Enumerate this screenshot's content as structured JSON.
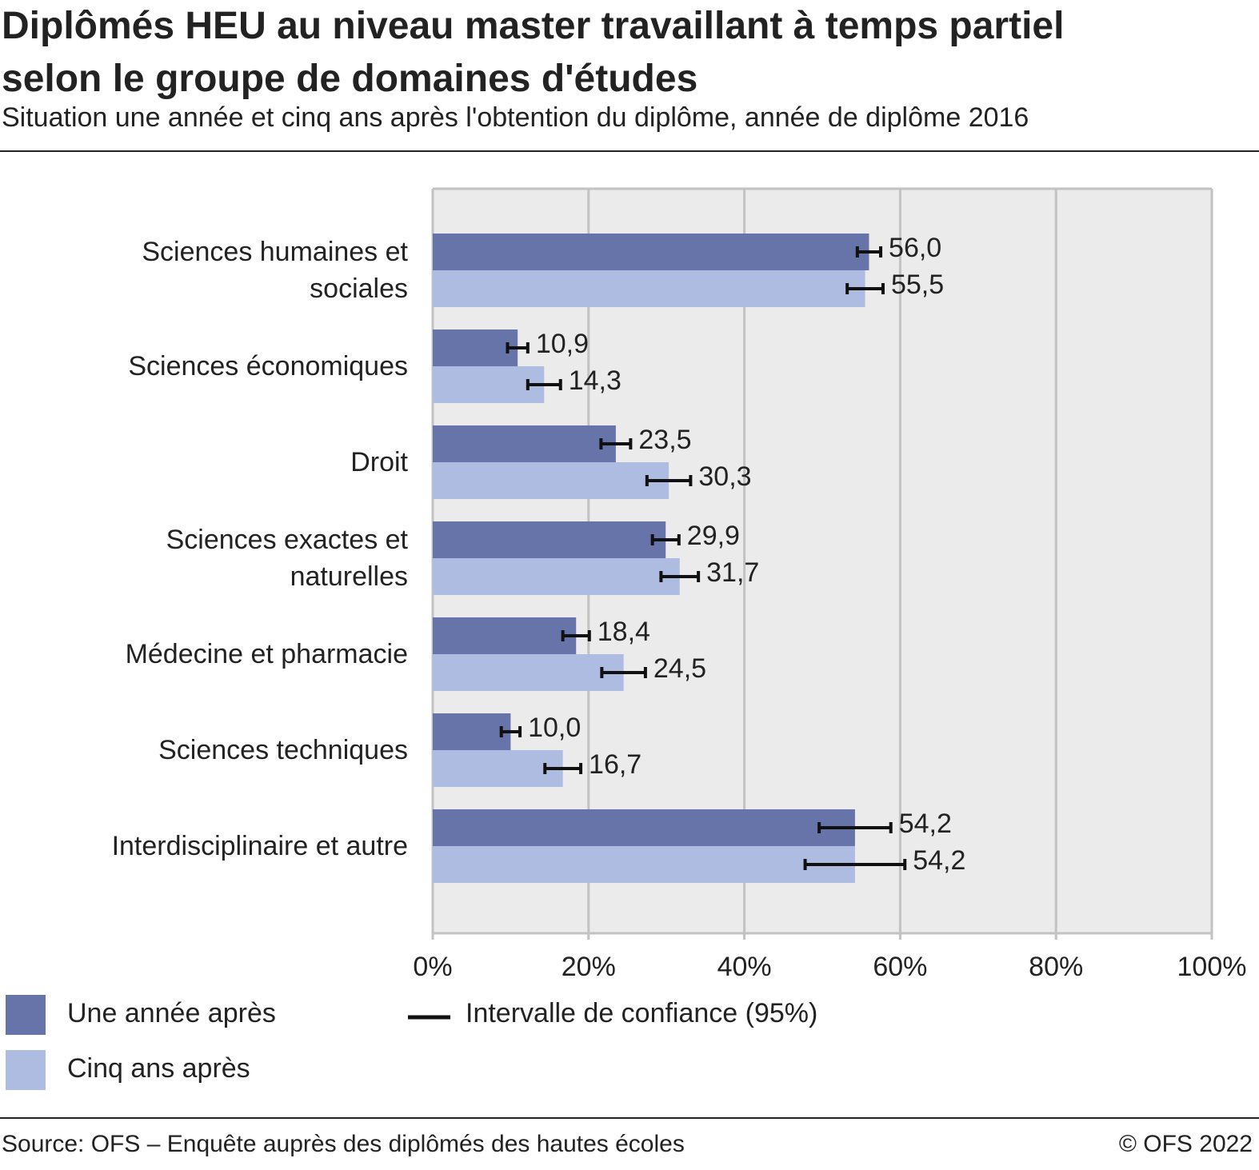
{
  "chart_data": {
    "type": "bar",
    "orientation": "horizontal",
    "title": "Diplômés HEU au niveau master travaillant à temps partiel selon le groupe de domaines d'études",
    "subtitle": "Situation une année et cinq ans après l'obtention du diplôme, année de diplôme 2016",
    "categories": [
      "Sciences humaines et sociales",
      "Sciences économiques",
      "Droit",
      "Sciences exactes et naturelles",
      "Médecine et pharmacie",
      "Sciences techniques",
      "Interdisciplinaire et autre"
    ],
    "series": [
      {
        "name": "Une année après",
        "color": "#6674aa",
        "values": [
          56.0,
          10.9,
          23.5,
          29.9,
          18.4,
          10.0,
          54.2
        ],
        "value_labels": [
          "56,0",
          "10,9",
          "23,5",
          "29,9",
          "18,4",
          "10,0",
          "54,2"
        ],
        "errors": [
          1.5,
          1.3,
          1.9,
          1.7,
          1.7,
          1.2,
          4.6
        ]
      },
      {
        "name": "Cinq ans après",
        "color": "#aebce2",
        "values": [
          55.5,
          14.3,
          30.3,
          31.7,
          24.5,
          16.7,
          54.2
        ],
        "value_labels": [
          "55,5",
          "14,3",
          "30,3",
          "31,7",
          "24,5",
          "16,7",
          "54,2"
        ],
        "errors": [
          2.3,
          2.1,
          2.8,
          2.4,
          2.8,
          2.3,
          6.4
        ]
      }
    ],
    "error_bar_label": "Intervalle de confiance (95%)",
    "error_bar_color": "#111111",
    "xlim": [
      0,
      100
    ],
    "xticks": [
      {
        "value": 0,
        "label": "0%"
      },
      {
        "value": 20,
        "label": "20%"
      },
      {
        "value": 40,
        "label": "40%"
      },
      {
        "value": 60,
        "label": "60%"
      },
      {
        "value": 80,
        "label": "80%"
      },
      {
        "value": 100,
        "label": "100%"
      }
    ],
    "grid": true,
    "source": "Source: OFS – Enquête auprès des diplômés des hautes écoles",
    "copyright": "© OFS 2022"
  }
}
